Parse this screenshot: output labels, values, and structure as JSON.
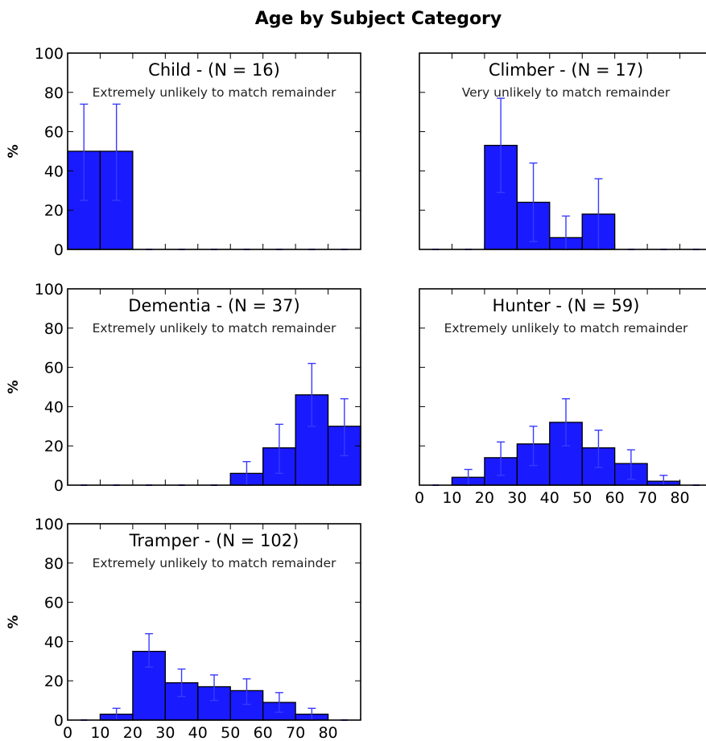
{
  "figure_title": "Age by Subject Category",
  "chart_data": [
    {
      "type": "bar",
      "title": "Child - (N = 16)",
      "subtitle": "Extremely unlikely to match remainder",
      "ylabel": "%",
      "xlabel": "",
      "x_bin_start": [
        0,
        10,
        20,
        30,
        40,
        50,
        60,
        70,
        80
      ],
      "bin_width": 10,
      "values": [
        50,
        50,
        0,
        0,
        0,
        0,
        0,
        0,
        0
      ],
      "err_low": [
        25,
        25,
        0,
        0,
        0,
        0,
        0,
        0,
        0
      ],
      "err_high": [
        74,
        74,
        0,
        0,
        0,
        0,
        0,
        0,
        0
      ],
      "xlim": [
        0,
        90
      ],
      "ylim": [
        0,
        100
      ],
      "yticks": [
        0,
        20,
        40,
        60,
        80,
        100
      ],
      "xticks": [],
      "show_ylabel": true
    },
    {
      "type": "bar",
      "title": "Climber - (N = 17)",
      "subtitle": "Very unlikely to match remainder",
      "ylabel": "",
      "xlabel": "",
      "x_bin_start": [
        0,
        10,
        20,
        30,
        40,
        50,
        60,
        70,
        80
      ],
      "bin_width": 10,
      "values": [
        0,
        0,
        53,
        24,
        6,
        18,
        0,
        0,
        0
      ],
      "err_low": [
        0,
        0,
        29,
        4,
        0,
        0,
        0,
        0,
        0
      ],
      "err_high": [
        0,
        0,
        77,
        44,
        17,
        36,
        0,
        0,
        0
      ],
      "xlim": [
        0,
        90
      ],
      "ylim": [
        0,
        100
      ],
      "yticks": [],
      "xticks": [],
      "show_ylabel": false
    },
    {
      "type": "bar",
      "title": "Dementia - (N = 37)",
      "subtitle": "Extremely unlikely to match remainder",
      "ylabel": "%",
      "xlabel": "",
      "x_bin_start": [
        0,
        10,
        20,
        30,
        40,
        50,
        60,
        70,
        80
      ],
      "bin_width": 10,
      "values": [
        0,
        0,
        0,
        0,
        0,
        6,
        19,
        46,
        30
      ],
      "err_low": [
        0,
        0,
        0,
        0,
        0,
        0,
        6,
        30,
        15
      ],
      "err_high": [
        0,
        0,
        0,
        0,
        0,
        12,
        31,
        62,
        44
      ],
      "xlim": [
        0,
        90
      ],
      "ylim": [
        0,
        100
      ],
      "yticks": [
        0,
        20,
        40,
        60,
        80,
        100
      ],
      "xticks": [],
      "show_ylabel": true
    },
    {
      "type": "bar",
      "title": "Hunter - (N = 59)",
      "subtitle": "Extremely unlikely to match remainder",
      "ylabel": "",
      "xlabel": "",
      "x_bin_start": [
        0,
        10,
        20,
        30,
        40,
        50,
        60,
        70,
        80
      ],
      "bin_width": 10,
      "values": [
        0,
        4,
        14,
        21,
        32,
        19,
        11,
        2,
        0
      ],
      "err_low": [
        0,
        0,
        5,
        10,
        20,
        9,
        3,
        0,
        0
      ],
      "err_high": [
        0,
        8,
        22,
        30,
        44,
        28,
        18,
        5,
        0
      ],
      "xlim": [
        0,
        90
      ],
      "ylim": [
        0,
        100
      ],
      "yticks": [],
      "xticks": [
        "0",
        "10",
        "20",
        "30",
        "40",
        "50",
        "60",
        "70",
        "80"
      ],
      "show_ylabel": false
    },
    {
      "type": "bar",
      "title": "Tramper - (N = 102)",
      "subtitle": "Extremely unlikely to match remainder",
      "ylabel": "%",
      "xlabel": "",
      "x_bin_start": [
        0,
        10,
        20,
        30,
        40,
        50,
        60,
        70,
        80
      ],
      "bin_width": 10,
      "values": [
        0,
        3,
        35,
        19,
        17,
        15,
        9,
        3,
        0
      ],
      "err_low": [
        0,
        0,
        27,
        12,
        10,
        8,
        4,
        0,
        0
      ],
      "err_high": [
        0,
        6,
        44,
        26,
        23,
        21,
        14,
        6,
        0
      ],
      "xlim": [
        0,
        90
      ],
      "ylim": [
        0,
        100
      ],
      "yticks": [
        0,
        20,
        40,
        60,
        80,
        100
      ],
      "xticks": [
        "0",
        "10",
        "20",
        "30",
        "40",
        "50",
        "60",
        "70",
        "80"
      ],
      "show_ylabel": true
    }
  ]
}
